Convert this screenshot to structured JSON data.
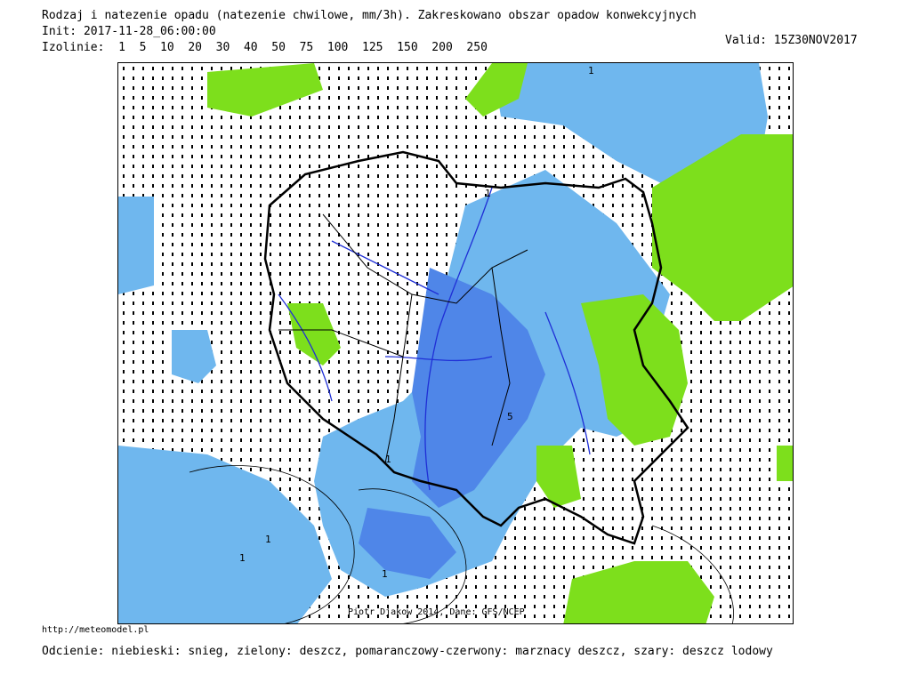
{
  "header": {
    "title": "Rodzaj i natezenie opadu (natezenie chwilowe, mm/3h). Zakreskowano obszar opadow konwekcyjnych",
    "init": "Init: 2017-11-28_06:00:00",
    "isolines": "Izolinie:  1  5  10  20  30  40  50  75  100  125  150  200  250",
    "valid": "Valid: 15Z30NOV2017"
  },
  "map": {
    "credit": "Piotr Djakow 2014, Dane: GFS/NCEP",
    "colors": {
      "snow": "#6fb7ee",
      "snow_dark": "#4f86e8",
      "rain": "#7ddf1c",
      "border": "#000000",
      "river": "#1f2fd6"
    },
    "contour_labels": [
      "1",
      "1",
      "1",
      "1",
      "1",
      "1",
      "5"
    ]
  },
  "footer": {
    "url": "http://meteomodel.pl",
    "legend": "Odcienie: niebieski: snieg, zielony: deszcz, pomaranczowy-czerwony: marznacy deszcz, szary: deszcz lodowy"
  }
}
